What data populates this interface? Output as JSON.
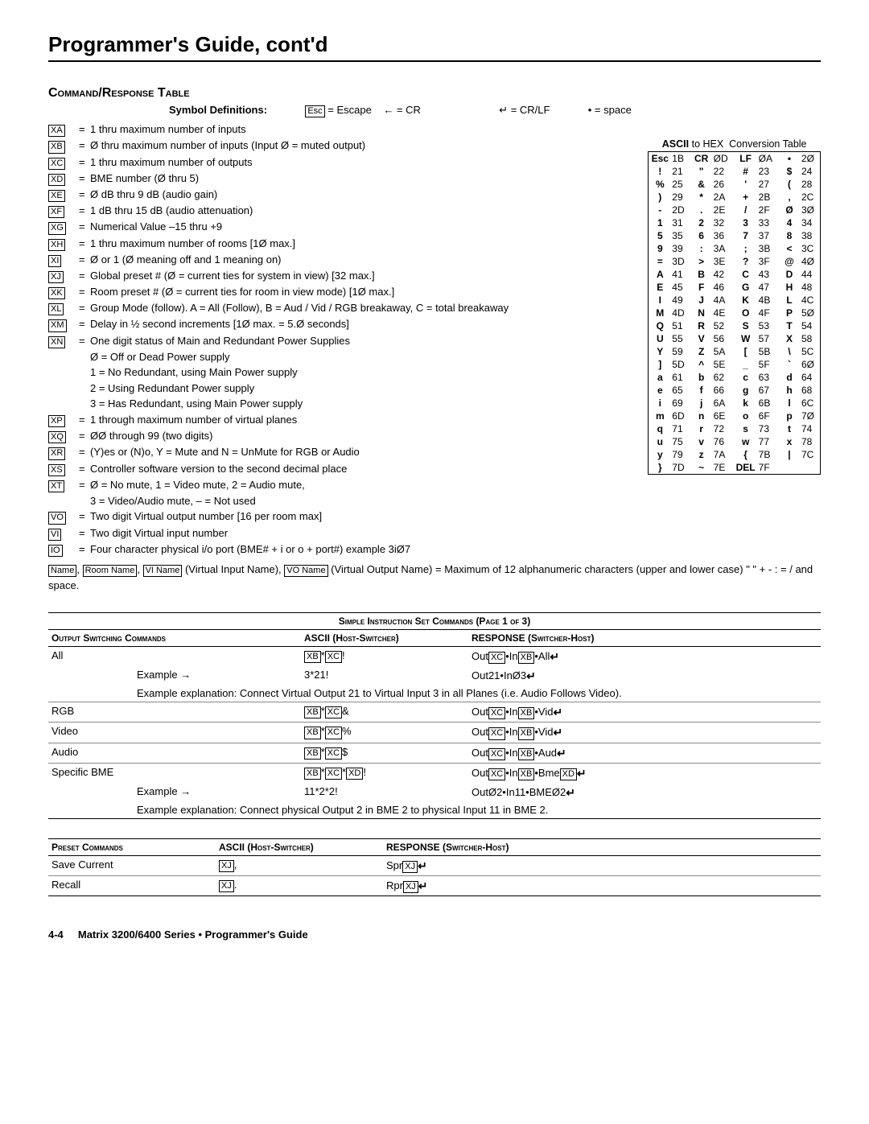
{
  "page": {
    "title": "Programmer's Guide, cont'd",
    "section": "Command/Response Table",
    "footer_page": "4-4",
    "footer_text": "Matrix 3200/6400 Series • Programmer's Guide"
  },
  "legend": {
    "label": "Symbol Definitions:",
    "items": [
      {
        "sym": "Esc",
        "txt": "= Escape"
      },
      {
        "sym": "←",
        "txt": "= CR"
      },
      {
        "sym": "↵",
        "txt": "= CR/LF"
      },
      {
        "sym": "•",
        "txt": "= space"
      }
    ]
  },
  "defs": [
    {
      "sym": "XA",
      "txt": "1 thru maximum number of inputs"
    },
    {
      "sym": "XB",
      "txt": "Ø thru maximum number of inputs (Input Ø = muted output)"
    },
    {
      "sym": "XC",
      "txt": "1 thru maximum number of outputs"
    },
    {
      "sym": "XD",
      "txt": "BME number (Ø thru 5)"
    },
    {
      "sym": "XE",
      "txt": "Ø dB thru 9 dB (audio gain)"
    },
    {
      "sym": "XF",
      "txt": "1 dB thru 15 dB (audio attenuation)"
    },
    {
      "sym": "XG",
      "txt": "Numerical Value –15 thru +9"
    },
    {
      "sym": "XH",
      "txt": "1 thru maximum number of rooms [1Ø max.]"
    },
    {
      "sym": "XI",
      "txt": "Ø or 1 (Ø meaning off and 1 meaning on)"
    },
    {
      "sym": "XJ",
      "txt": "Global preset # (Ø = current ties for system in view) [32 max.]"
    },
    {
      "sym": "XK",
      "txt": "Room preset # (Ø = current ties for room in view mode) [1Ø max.]"
    },
    {
      "sym": "XL",
      "txt": "Group Mode (follow). A = All (Follow), B = Aud / Vid / RGB breakaway, C = total breakaway"
    },
    {
      "sym": "XM",
      "txt": "Delay in ½ second increments [1Ø max. = 5.Ø seconds]"
    },
    {
      "sym": "XN",
      "txt": "One digit status of Main and Redundant Power Supplies"
    },
    {
      "sym": "",
      "txt": "Ø = Off or Dead Power supply",
      "indent": true
    },
    {
      "sym": "",
      "txt": "1 = No Redundant, using Main Power supply",
      "indent": true
    },
    {
      "sym": "",
      "txt": "2 = Using Redundant Power supply",
      "indent": true
    },
    {
      "sym": "",
      "txt": "3 = Has Redundant, using Main Power supply",
      "indent": true
    },
    {
      "sym": "XP",
      "txt": "1 through maximum number of virtual planes"
    },
    {
      "sym": "XQ",
      "txt": "ØØ through 99 (two digits)"
    },
    {
      "sym": "XR",
      "txt": "(Y)es or (N)o, Y = Mute and N = UnMute for RGB or Audio"
    },
    {
      "sym": "XS",
      "txt": "Controller software version to the second decimal place"
    },
    {
      "sym": "XT",
      "txt": "Ø = No mute, 1 = Video mute, 2 = Audio mute,"
    },
    {
      "sym": "",
      "txt": "3 = Video/Audio mute, – = Not used",
      "indent": true
    },
    {
      "sym": "VO",
      "txt": "Two digit Virtual output number [16 per room max]"
    },
    {
      "sym": "VI",
      "txt": "Two digit Virtual input number"
    },
    {
      "sym": "IO",
      "txt": "Four character physical i/o port (BME# + i or o + port#) example 3iØ7"
    }
  ],
  "names_line": {
    "prefix_boxes": [
      "Name",
      "Room Name",
      "VI Name"
    ],
    "mid": "(Virtual Input Name),",
    "vo_box": "VO Name",
    "tail": "(Virtual Output Name) = Maximum of 12 alphanumeric characters (upper and lower case) \" \"  + - : = / and space."
  },
  "hex": {
    "title": "ASCII to HEX  Conversion Table",
    "rows": [
      [
        [
          "Esc",
          "1B"
        ],
        [
          "CR",
          "ØD"
        ],
        [
          "LF",
          "ØA"
        ],
        [
          "•",
          "2Ø"
        ]
      ],
      [
        [
          "!",
          "21"
        ],
        [
          "\"",
          "22"
        ],
        [
          "#",
          "23"
        ],
        [
          "$",
          "24"
        ]
      ],
      [
        [
          "%",
          "25"
        ],
        [
          "&",
          "26"
        ],
        [
          "'",
          "27"
        ],
        [
          "(",
          "28"
        ]
      ],
      [
        [
          ")",
          "29"
        ],
        [
          "*",
          "2A"
        ],
        [
          "+",
          "2B"
        ],
        [
          ",",
          "2C"
        ]
      ],
      [
        [
          "-",
          "2D"
        ],
        [
          ".",
          "2E"
        ],
        [
          "/",
          "2F"
        ],
        [
          "Ø",
          "3Ø"
        ]
      ],
      [
        [
          "1",
          "31"
        ],
        [
          "2",
          "32"
        ],
        [
          "3",
          "33"
        ],
        [
          "4",
          "34"
        ]
      ],
      [
        [
          "5",
          "35"
        ],
        [
          "6",
          "36"
        ],
        [
          "7",
          "37"
        ],
        [
          "8",
          "38"
        ]
      ],
      [
        [
          "9",
          "39"
        ],
        [
          ":",
          "3A"
        ],
        [
          ";",
          "3B"
        ],
        [
          "<",
          "3C"
        ]
      ],
      [
        [
          "=",
          "3D"
        ],
        [
          ">",
          "3E"
        ],
        [
          "?",
          "3F"
        ],
        [
          "@",
          "4Ø"
        ]
      ],
      [
        [
          "A",
          "41"
        ],
        [
          "B",
          "42"
        ],
        [
          "C",
          "43"
        ],
        [
          "D",
          "44"
        ]
      ],
      [
        [
          "E",
          "45"
        ],
        [
          "F",
          "46"
        ],
        [
          "G",
          "47"
        ],
        [
          "H",
          "48"
        ]
      ],
      [
        [
          "I",
          "49"
        ],
        [
          "J",
          "4A"
        ],
        [
          "K",
          "4B"
        ],
        [
          "L",
          "4C"
        ]
      ],
      [
        [
          "M",
          "4D"
        ],
        [
          "N",
          "4E"
        ],
        [
          "O",
          "4F"
        ],
        [
          "P",
          "5Ø"
        ]
      ],
      [
        [
          "Q",
          "51"
        ],
        [
          "R",
          "52"
        ],
        [
          "S",
          "53"
        ],
        [
          "T",
          "54"
        ]
      ],
      [
        [
          "U",
          "55"
        ],
        [
          "V",
          "56"
        ],
        [
          "W",
          "57"
        ],
        [
          "X",
          "58"
        ]
      ],
      [
        [
          "Y",
          "59"
        ],
        [
          "Z",
          "5A"
        ],
        [
          "[",
          "5B"
        ],
        [
          "\\",
          "5C"
        ]
      ],
      [
        [
          "]",
          "5D"
        ],
        [
          "^",
          "5E"
        ],
        [
          "_",
          "5F"
        ],
        [
          "`",
          "6Ø"
        ]
      ],
      [
        [
          "a",
          "61"
        ],
        [
          "b",
          "62"
        ],
        [
          "c",
          "63"
        ],
        [
          "d",
          "64"
        ]
      ],
      [
        [
          "e",
          "65"
        ],
        [
          "f",
          "66"
        ],
        [
          "g",
          "67"
        ],
        [
          "h",
          "68"
        ]
      ],
      [
        [
          "i",
          "69"
        ],
        [
          "j",
          "6A"
        ],
        [
          "k",
          "6B"
        ],
        [
          "l",
          "6C"
        ]
      ],
      [
        [
          "m",
          "6D"
        ],
        [
          "n",
          "6E"
        ],
        [
          "o",
          "6F"
        ],
        [
          "p",
          "7Ø"
        ]
      ],
      [
        [
          "q",
          "71"
        ],
        [
          "r",
          "72"
        ],
        [
          "s",
          "73"
        ],
        [
          "t",
          "74"
        ]
      ],
      [
        [
          "u",
          "75"
        ],
        [
          "v",
          "76"
        ],
        [
          "w",
          "77"
        ],
        [
          "x",
          "78"
        ]
      ],
      [
        [
          "y",
          "79"
        ],
        [
          "z",
          "7A"
        ],
        [
          "{",
          "7B"
        ],
        [
          "|",
          "7C"
        ]
      ],
      [
        [
          "}",
          "7D"
        ],
        [
          "~",
          "7E"
        ],
        [
          "DEL",
          "7F"
        ],
        [
          "",
          ""
        ]
      ]
    ]
  },
  "sis": {
    "super": "Simple Instruction Set Commands (Page 1 of 3)",
    "hdr1": "Output Switching Commands",
    "hdr_ascii": "ASCII (Host-Switcher)",
    "hdr_resp": "RESPONSE (Switcher-Host)",
    "rows": [
      {
        "name": "All",
        "ascii": "[XB]*[XC]!",
        "resp": "Out[XC]•In[XB]•All↵"
      },
      {
        "example_label": "Example  →",
        "ascii": "3*21!",
        "resp": "Out21•InØ3↵"
      },
      {
        "explain": "Example explanation: Connect Virtual Output 21 to Virtual Input 3 in all Planes (i.e. Audio Follows Video)."
      },
      {
        "name": "RGB",
        "ascii": "[XB]*[XC]&",
        "resp": "Out[XC]•In[XB]•Vid↵"
      },
      {
        "name": "Video",
        "ascii": "[XB]*[XC]%",
        "resp": "Out[XC]•In[XB]•Vid↵"
      },
      {
        "name": "Audio",
        "ascii": "[XB]*[XC]$",
        "resp": "Out[XC]•In[XB]•Aud↵"
      },
      {
        "name": "Specific BME",
        "ascii": "[XB]*[XC]*[XD]!",
        "resp": "Out[XC]•In[XB]•Bme[XD]↵"
      },
      {
        "example_label": "Example  →",
        "ascii": "11*2*2!",
        "resp": "OutØ2•In11•BMEØ2↵"
      },
      {
        "explain": "Example explanation: Connect physical Output 2 in BME 2 to physical Input 11 in BME 2."
      }
    ]
  },
  "preset": {
    "hdr1": "Preset Commands",
    "rows": [
      {
        "name": "Save Current",
        "ascii": "[XJ],",
        "resp": "Spr[XJ]↵"
      },
      {
        "name": "Recall",
        "ascii": "[XJ].",
        "resp": "Rpr[XJ]↵"
      }
    ]
  },
  "style": {
    "box_border": "#000000",
    "text": "#000000",
    "rule_light": "#888888"
  }
}
